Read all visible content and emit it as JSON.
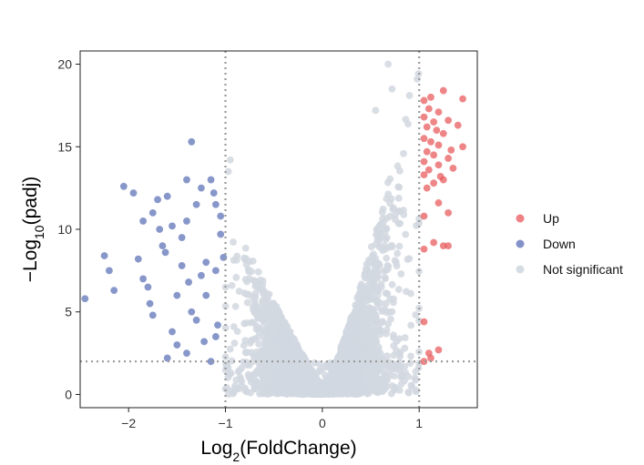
{
  "chart_data": {
    "type": "scatter",
    "title": "",
    "xlabel": {
      "base": "Log",
      "sub": "2",
      "rest": "(FoldChange)"
    },
    "ylabel": {
      "prefix": "−Log",
      "sub": "10",
      "rest": "(padj)"
    },
    "xlim": [
      -2.5,
      1.6
    ],
    "ylim": [
      -0.8,
      20.8
    ],
    "x_ticks": [
      -2,
      -1,
      0,
      1
    ],
    "y_ticks": [
      0,
      5,
      10,
      15,
      20
    ],
    "thresholds": {
      "log2fc": [
        -1,
        1
      ],
      "neg_log10_padj": 2
    },
    "grid": false,
    "legend_position": "right",
    "series": [
      {
        "name": "Up",
        "color": "#e8575a",
        "points": [
          [
            1.05,
            17.8
          ],
          [
            1.12,
            18.0
          ],
          [
            1.25,
            18.4
          ],
          [
            1.45,
            17.9
          ],
          [
            1.1,
            17.3
          ],
          [
            1.2,
            17.1
          ],
          [
            1.05,
            16.8
          ],
          [
            1.15,
            16.5
          ],
          [
            1.3,
            16.6
          ],
          [
            1.08,
            16.2
          ],
          [
            1.18,
            16.0
          ],
          [
            1.25,
            15.8
          ],
          [
            1.4,
            16.3
          ],
          [
            1.05,
            15.5
          ],
          [
            1.12,
            15.3
          ],
          [
            1.2,
            15.1
          ],
          [
            1.45,
            15.0
          ],
          [
            1.08,
            14.7
          ],
          [
            1.15,
            14.5
          ],
          [
            1.3,
            14.3
          ],
          [
            1.05,
            14.1
          ],
          [
            1.2,
            13.9
          ],
          [
            1.1,
            13.6
          ],
          [
            1.35,
            13.7
          ],
          [
            1.05,
            13.3
          ],
          [
            1.25,
            13.0
          ],
          [
            1.15,
            12.8
          ],
          [
            1.08,
            12.5
          ],
          [
            1.2,
            11.6
          ],
          [
            1.3,
            11.0
          ],
          [
            1.05,
            10.8
          ],
          [
            1.15,
            9.2
          ],
          [
            1.25,
            9.0
          ],
          [
            1.05,
            8.8
          ],
          [
            1.3,
            9.0
          ],
          [
            1.05,
            4.4
          ],
          [
            1.1,
            2.5
          ],
          [
            1.2,
            2.7
          ],
          [
            1.12,
            2.2
          ],
          [
            1.05,
            2.0
          ],
          [
            1.22,
            13.2
          ],
          [
            1.33,
            14.8
          ]
        ]
      },
      {
        "name": "Down",
        "color": "#5a6fb5",
        "points": [
          [
            -2.45,
            5.8
          ],
          [
            -2.15,
            6.3
          ],
          [
            -2.2,
            7.5
          ],
          [
            -2.25,
            8.4
          ],
          [
            -2.05,
            12.6
          ],
          [
            -1.95,
            12.2
          ],
          [
            -1.9,
            8.2
          ],
          [
            -1.85,
            7.0
          ],
          [
            -1.8,
            6.5
          ],
          [
            -1.78,
            5.5
          ],
          [
            -1.75,
            4.8
          ],
          [
            -1.7,
            11.8
          ],
          [
            -1.68,
            10.0
          ],
          [
            -1.65,
            9.0
          ],
          [
            -1.6,
            12.0
          ],
          [
            -1.55,
            3.8
          ],
          [
            -1.5,
            6.0
          ],
          [
            -1.45,
            9.5
          ],
          [
            -1.4,
            10.5
          ],
          [
            -1.4,
            13.0
          ],
          [
            -1.35,
            15.3
          ],
          [
            -1.3,
            11.5
          ],
          [
            -1.3,
            4.5
          ],
          [
            -1.25,
            7.2
          ],
          [
            -1.2,
            8.0
          ],
          [
            -1.15,
            2.0
          ],
          [
            -1.1,
            11.5
          ],
          [
            -1.05,
            10.8
          ],
          [
            -1.4,
            2.5
          ],
          [
            -1.5,
            3.0
          ],
          [
            -1.6,
            2.2
          ],
          [
            -1.35,
            5.0
          ],
          [
            -1.2,
            6.0
          ],
          [
            -1.1,
            3.5
          ],
          [
            -1.25,
            12.5
          ],
          [
            -1.15,
            13.0
          ],
          [
            -1.05,
            9.7
          ],
          [
            -1.1,
            7.5
          ],
          [
            -1.85,
            10.5
          ],
          [
            -1.75,
            11.0
          ],
          [
            -1.55,
            10.2
          ],
          [
            -1.45,
            7.8
          ],
          [
            -1.08,
            4.2
          ],
          [
            -1.22,
            3.2
          ],
          [
            -1.62,
            8.6
          ],
          [
            -1.38,
            6.8
          ],
          [
            -1.12,
            12.2
          ],
          [
            -1.02,
            8.3
          ]
        ]
      },
      {
        "name": "Not significant",
        "color": "#d2d8e1",
        "points": []
      }
    ]
  },
  "legend": {
    "items": [
      {
        "label": "Up",
        "color": "#e8575a"
      },
      {
        "label": "Down",
        "color": "#5a6fb5"
      },
      {
        "label": "Not significant",
        "color": "#d2d8e1"
      }
    ]
  }
}
